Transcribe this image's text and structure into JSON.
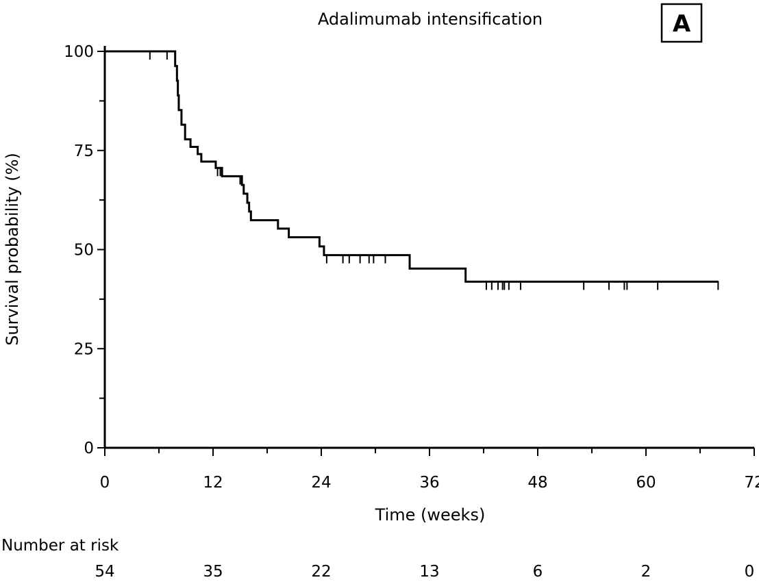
{
  "chart_data": {
    "type": "line",
    "title": "Adalimumab intensification",
    "panel_label": "A",
    "xlabel": "Time (weeks)",
    "ylabel": "Survival probability (%)",
    "xlim": [
      0,
      72
    ],
    "ylim": [
      0,
      100
    ],
    "x_ticks": [
      0,
      12,
      24,
      36,
      48,
      60,
      72
    ],
    "x_tick_labels": [
      "0",
      "12",
      "24",
      "36",
      "48",
      "60",
      "72"
    ],
    "x_minor_ticks": [
      6,
      18,
      30,
      42,
      54,
      66
    ],
    "y_ticks": [
      0,
      25,
      50,
      75,
      100
    ],
    "y_tick_labels": [
      "0",
      "25",
      "50",
      "75",
      "100"
    ],
    "y_minor_ticks": [
      12.5,
      37.5,
      62.5,
      87.5
    ],
    "grid": false,
    "series": [
      {
        "steps": [
          [
            0,
            100
          ],
          [
            7.8,
            96.3
          ],
          [
            8.0,
            92.6
          ],
          [
            8.1,
            88.9
          ],
          [
            8.2,
            85.2
          ],
          [
            8.5,
            81.5
          ],
          [
            8.9,
            77.8
          ],
          [
            9.5,
            75.9
          ],
          [
            10.3,
            74.1
          ],
          [
            10.7,
            72.2
          ],
          [
            12.3,
            70.6
          ],
          [
            13.0,
            68.5
          ],
          [
            15.2,
            66.3
          ],
          [
            15.4,
            64.1
          ],
          [
            15.8,
            61.8
          ],
          [
            16.0,
            59.6
          ],
          [
            16.2,
            57.4
          ],
          [
            19.2,
            55.3
          ],
          [
            20.4,
            53.1
          ],
          [
            23.8,
            50.8
          ],
          [
            24.3,
            48.6
          ],
          [
            33.8,
            45.2
          ],
          [
            40.0,
            41.9
          ]
        ],
        "x_end": 68.0,
        "censored": [
          [
            5.0,
            100
          ],
          [
            6.9,
            100
          ],
          [
            12.5,
            70.6
          ],
          [
            12.8,
            70.6
          ],
          [
            15.0,
            68.5
          ],
          [
            24.6,
            48.6
          ],
          [
            26.4,
            48.6
          ],
          [
            27.1,
            48.6
          ],
          [
            28.3,
            48.6
          ],
          [
            29.3,
            48.6
          ],
          [
            29.8,
            48.6
          ],
          [
            31.1,
            48.6
          ],
          [
            33.8,
            48.6
          ],
          [
            42.3,
            41.9
          ],
          [
            42.9,
            41.9
          ],
          [
            43.6,
            41.9
          ],
          [
            44.1,
            41.9
          ],
          [
            44.3,
            41.9
          ],
          [
            44.8,
            41.9
          ],
          [
            46.1,
            41.9
          ],
          [
            53.1,
            41.9
          ],
          [
            55.9,
            41.9
          ],
          [
            57.6,
            41.9
          ],
          [
            57.9,
            41.9
          ],
          [
            61.3,
            41.9
          ],
          [
            68.0,
            41.9
          ]
        ]
      }
    ],
    "number_at_risk": {
      "label": "Number at risk",
      "times": [
        0,
        12,
        24,
        36,
        48,
        60,
        72
      ],
      "values": [
        "54",
        "35",
        "22",
        "13",
        "6",
        "2",
        "0"
      ]
    }
  }
}
